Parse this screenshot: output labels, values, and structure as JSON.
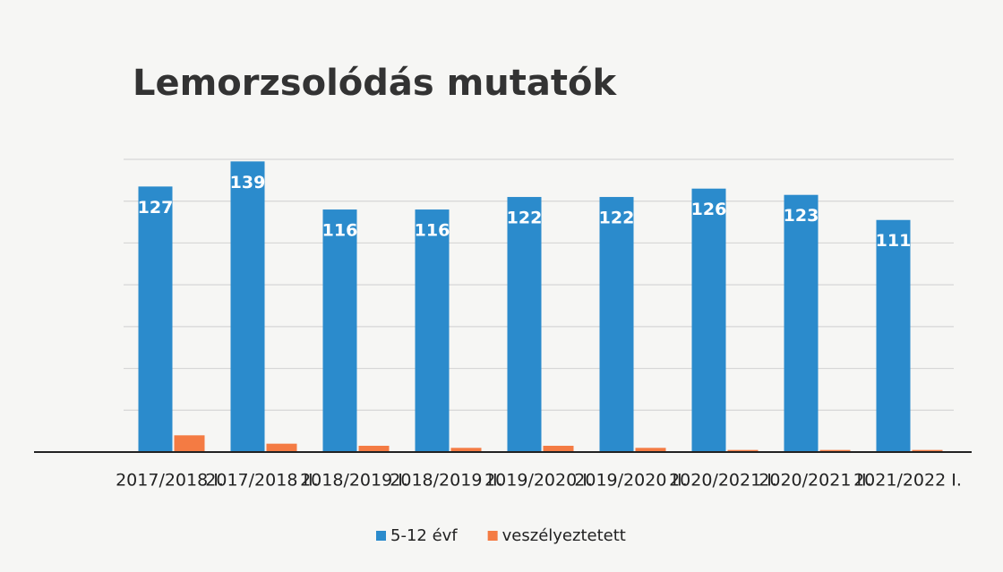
{
  "chart_data": {
    "type": "bar",
    "title": "Lemorzsolódás mutatók",
    "categories": [
      "2017/2018 I.",
      "2017/2018 II.",
      "2018/2019 I.",
      "2018/2019 II.",
      "2019/2020 I.",
      "2019/2020 II.",
      "2020/2021 I.",
      "2020/2021 II.",
      "2021/2022 I."
    ],
    "series": [
      {
        "name": "5-12 évf",
        "color": "#2b8bcc",
        "values": [
          127,
          139,
          116,
          116,
          122,
          122,
          126,
          123,
          111
        ]
      },
      {
        "name": "veszélyeztetett",
        "color": "#f47b43",
        "values": [
          8,
          4,
          3,
          2,
          3,
          2,
          1,
          1,
          1
        ]
      }
    ],
    "ylim": [
      0,
      140
    ],
    "yticks": [
      0,
      20,
      40,
      60,
      80,
      100,
      120,
      140
    ],
    "grid": true,
    "legend": "bottom"
  }
}
